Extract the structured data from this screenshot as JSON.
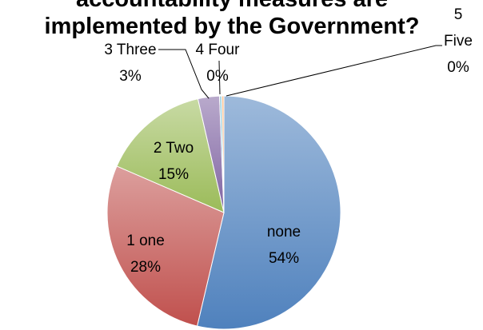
{
  "chart_data": {
    "type": "pie",
    "title_lines": [
      "accountability measures are",
      "implemented by the Government?"
    ],
    "slices": [
      {
        "label": "none",
        "value": 54,
        "pct_label": "54%",
        "color": "#4f81bd"
      },
      {
        "label": "1 one",
        "value": 28,
        "pct_label": "28%",
        "color": "#c0504d"
      },
      {
        "label": "2 Two",
        "value": 15,
        "pct_label": "15%",
        "color": "#9bbb59"
      },
      {
        "label": "3 Three",
        "value": 3,
        "pct_label": "3%",
        "color": "#8064a2"
      },
      {
        "label": "4 Four",
        "value": 0.3,
        "pct_label": "0%",
        "color": "#4bacc6"
      },
      {
        "label": "5 Five",
        "value": 0.3,
        "pct_label": "0%",
        "color": "#f79646"
      }
    ]
  }
}
